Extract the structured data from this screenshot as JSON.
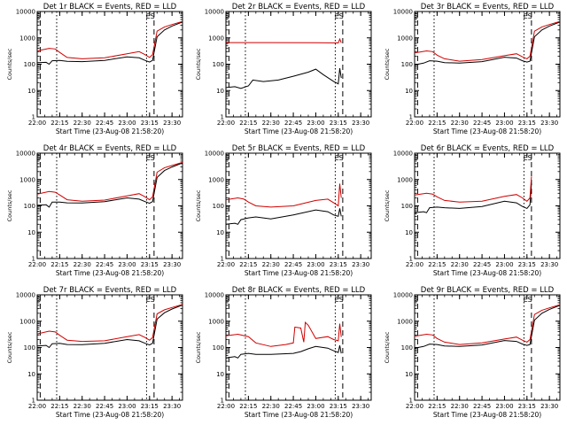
{
  "figure": {
    "layout": "3x3 grid of detector light curves"
  },
  "chart_data": [
    {
      "type": "line",
      "title": "Det 1r BLACK = Events, RED = LLD",
      "xlabel": "Start Time (23-Aug-08 21:58:20)",
      "ylabel": "Counts/sec",
      "xlim": [
        "22:00",
        "23:37"
      ],
      "ylim": [
        1,
        10000
      ],
      "yscale": "log",
      "x_ticks": [
        "22:00",
        "22:15",
        "22:30",
        "22:45",
        "23:00",
        "23:15",
        "23:30"
      ],
      "y_ticks": [
        "1",
        "10",
        "100",
        "1000",
        "10000"
      ],
      "markers": [
        "S",
        "E",
        "S"
      ],
      "series": [
        {
          "color": "#000000",
          "x": [
            "21:58",
            "22:00",
            "22:06",
            "22:08",
            "22:10",
            "22:15",
            "22:20",
            "22:30",
            "22:45",
            "23:00",
            "23:08",
            "23:12",
            "23:15",
            "23:17",
            "23:20",
            "23:25",
            "23:30",
            "23:37"
          ],
          "values": [
            110,
            115,
            118,
            100,
            135,
            140,
            128,
            125,
            140,
            190,
            175,
            140,
            120,
            140,
            1100,
            2000,
            2800,
            4000
          ]
        },
        {
          "color": "#d00000",
          "x": [
            "21:58",
            "22:00",
            "22:08",
            "22:12",
            "22:15",
            "22:20",
            "22:30",
            "22:45",
            "23:00",
            "23:08",
            "23:12",
            "23:15",
            "23:17",
            "23:20",
            "23:25",
            "23:30",
            "23:37"
          ],
          "values": [
            300,
            320,
            400,
            380,
            280,
            180,
            160,
            175,
            250,
            300,
            230,
            180,
            230,
            1800,
            2600,
            3200,
            4200
          ]
        }
      ]
    },
    {
      "type": "line",
      "title": "Det 2r BLACK = Events, RED = LLD",
      "xlabel": "Start Time (23-Aug-08 21:58:20)",
      "ylabel": "Counts/sec",
      "xlim": [
        "22:00",
        "23:37"
      ],
      "ylim": [
        1,
        10000
      ],
      "yscale": "log",
      "x_ticks": [
        "22:00",
        "22:15",
        "22:30",
        "22:45",
        "23:00",
        "23:15",
        "23:30"
      ],
      "y_ticks": [
        "1",
        "10",
        "100",
        "1000",
        "10000"
      ],
      "markers": [
        "S",
        "E",
        "S"
      ],
      "series": [
        {
          "color": "#000000",
          "x": [
            "21:58",
            "22:00",
            "22:06",
            "22:10",
            "22:15",
            "22:18",
            "22:25",
            "22:35",
            "22:45",
            "22:55",
            "23:00",
            "23:05",
            "23:12",
            "23:15",
            "23:16",
            "23:17"
          ],
          "values": [
            12,
            13,
            14,
            12,
            15,
            25,
            22,
            25,
            35,
            50,
            65,
            40,
            22,
            18,
            70,
            30
          ]
        },
        {
          "color": "#d00000",
          "x": [
            "21:58",
            "22:00",
            "22:30",
            "23:00",
            "23:15",
            "23:16",
            "23:17"
          ],
          "values": [
            650,
            660,
            660,
            650,
            640,
            900,
            650
          ]
        }
      ]
    },
    {
      "type": "line",
      "title": "Det 3r BLACK = Events, RED = LLD",
      "xlabel": "Start Time (23-Aug-08 21:58:20)",
      "ylabel": "Counts/sec",
      "xlim": [
        "22:00",
        "23:37"
      ],
      "ylim": [
        1,
        10000
      ],
      "yscale": "log",
      "x_ticks": [
        "22:00",
        "22:15",
        "22:30",
        "22:45",
        "23:00",
        "23:15",
        "23:30"
      ],
      "y_ticks": [
        "1",
        "10",
        "100",
        "1000",
        "10000"
      ],
      "markers": [
        "S",
        "E",
        "S"
      ],
      "series": [
        {
          "color": "#000000",
          "x": [
            "21:58",
            "22:00",
            "22:06",
            "22:10",
            "22:15",
            "22:20",
            "22:30",
            "22:45",
            "23:00",
            "23:08",
            "23:12",
            "23:15",
            "23:17",
            "23:20",
            "23:25",
            "23:30",
            "23:37"
          ],
          "values": [
            90,
            95,
            110,
            135,
            130,
            115,
            110,
            125,
            185,
            170,
            135,
            120,
            130,
            1100,
            2000,
            2800,
            4000
          ]
        },
        {
          "color": "#d00000",
          "x": [
            "21:58",
            "22:00",
            "22:08",
            "22:12",
            "22:15",
            "22:20",
            "22:30",
            "22:45",
            "23:00",
            "23:08",
            "23:12",
            "23:15",
            "23:17",
            "23:20",
            "23:25",
            "23:30",
            "23:37"
          ],
          "values": [
            250,
            270,
            320,
            300,
            220,
            160,
            130,
            150,
            210,
            250,
            190,
            160,
            200,
            1800,
            2600,
            3200,
            4200
          ]
        }
      ]
    },
    {
      "type": "line",
      "title": "Det 4r BLACK = Events, RED = LLD",
      "xlabel": "Start Time (23-Aug-08 21:58:20)",
      "ylabel": "Counts/sec",
      "xlim": [
        "22:00",
        "23:37"
      ],
      "ylim": [
        1,
        10000
      ],
      "yscale": "log",
      "x_ticks": [
        "22:00",
        "22:15",
        "22:30",
        "22:45",
        "23:00",
        "23:15",
        "23:30"
      ],
      "y_ticks": [
        "1",
        "10",
        "100",
        "1000",
        "10000"
      ],
      "markers": [
        "S",
        "E",
        "S"
      ],
      "series": [
        {
          "color": "#000000",
          "x": [
            "21:58",
            "22:00",
            "22:06",
            "22:08",
            "22:10",
            "22:15",
            "22:20",
            "22:30",
            "22:45",
            "23:00",
            "23:08",
            "23:12",
            "23:15",
            "23:17",
            "23:20",
            "23:25",
            "23:30",
            "23:37"
          ],
          "values": [
            100,
            105,
            110,
            90,
            140,
            140,
            130,
            128,
            145,
            200,
            180,
            145,
            125,
            145,
            1200,
            2200,
            3000,
            4300
          ]
        },
        {
          "color": "#d00000",
          "x": [
            "21:58",
            "22:00",
            "22:08",
            "22:12",
            "22:15",
            "22:20",
            "22:30",
            "22:45",
            "23:00",
            "23:08",
            "23:12",
            "23:15",
            "23:17",
            "23:20",
            "23:25",
            "23:30",
            "23:37"
          ],
          "values": [
            260,
            280,
            350,
            330,
            260,
            170,
            150,
            165,
            240,
            290,
            220,
            170,
            220,
            1900,
            2800,
            3400,
            4500
          ]
        }
      ]
    },
    {
      "type": "line",
      "title": "Det 5r BLACK = Events, RED = LLD",
      "xlabel": "Start Time (23-Aug-08 21:58:20)",
      "ylabel": "Counts/sec",
      "xlim": [
        "22:00",
        "23:37"
      ],
      "ylim": [
        1,
        10000
      ],
      "yscale": "log",
      "x_ticks": [
        "22:00",
        "22:15",
        "22:30",
        "22:45",
        "23:00",
        "23:15",
        "23:30"
      ],
      "y_ticks": [
        "1",
        "10",
        "100",
        "1000",
        "10000"
      ],
      "markers": [
        "S",
        "E",
        "S"
      ],
      "series": [
        {
          "color": "#000000",
          "x": [
            "21:58",
            "22:00",
            "22:06",
            "22:08",
            "22:10",
            "22:15",
            "22:20",
            "22:30",
            "22:45",
            "23:00",
            "23:08",
            "23:12",
            "23:15",
            "23:16",
            "23:17"
          ],
          "values": [
            18,
            20,
            22,
            20,
            30,
            35,
            38,
            32,
            45,
            70,
            60,
            45,
            40,
            80,
            40
          ]
        },
        {
          "color": "#d00000",
          "x": [
            "21:58",
            "22:00",
            "22:08",
            "22:12",
            "22:15",
            "22:20",
            "22:30",
            "22:45",
            "23:00",
            "23:08",
            "23:12",
            "23:15",
            "23:16",
            "23:17"
          ],
          "values": [
            150,
            170,
            200,
            180,
            140,
            100,
            90,
            100,
            160,
            180,
            130,
            100,
            700,
            200
          ]
        }
      ]
    },
    {
      "type": "line",
      "title": "Det 6r BLACK = Events, RED = LLD",
      "xlabel": "Start Time (23-Aug-08 21:58:20)",
      "ylabel": "Counts/sec",
      "xlim": [
        "22:00",
        "23:37"
      ],
      "ylim": [
        1,
        10000
      ],
      "yscale": "log",
      "x_ticks": [
        "22:00",
        "22:15",
        "22:30",
        "22:45",
        "23:00",
        "23:15",
        "23:30"
      ],
      "y_ticks": [
        "1",
        "10",
        "100",
        "1000",
        "10000"
      ],
      "markers": [
        "S",
        "E",
        "S"
      ],
      "series": [
        {
          "color": "#000000",
          "x": [
            "21:58",
            "22:00",
            "22:06",
            "22:08",
            "22:10",
            "22:15",
            "22:20",
            "22:30",
            "22:45",
            "23:00",
            "23:08",
            "23:12",
            "23:15",
            "23:17",
            "23:18"
          ],
          "values": [
            50,
            55,
            60,
            55,
            85,
            90,
            85,
            80,
            95,
            150,
            130,
            95,
            80,
            110,
            700
          ]
        },
        {
          "color": "#d00000",
          "x": [
            "21:58",
            "22:00",
            "22:08",
            "22:12",
            "22:15",
            "22:20",
            "22:30",
            "22:45",
            "23:00",
            "23:08",
            "23:12",
            "23:15",
            "23:17",
            "23:18"
          ],
          "values": [
            230,
            260,
            300,
            280,
            220,
            160,
            140,
            150,
            230,
            270,
            200,
            150,
            200,
            1300
          ]
        }
      ]
    },
    {
      "type": "line",
      "title": "Det 7r BLACK = Events, RED = LLD",
      "xlabel": "Start Time (23-Aug-08 21:58:20)",
      "ylabel": "Counts/sec",
      "xlim": [
        "22:00",
        "23:37"
      ],
      "ylim": [
        1,
        10000
      ],
      "yscale": "log",
      "x_ticks": [
        "22:00",
        "22:15",
        "22:30",
        "22:45",
        "23:00",
        "23:15",
        "23:30"
      ],
      "y_ticks": [
        "1",
        "10",
        "100",
        "1000",
        "10000"
      ],
      "markers": [
        "S",
        "E",
        "S"
      ],
      "series": [
        {
          "color": "#000000",
          "x": [
            "21:58",
            "22:00",
            "22:06",
            "22:08",
            "22:10",
            "22:15",
            "22:20",
            "22:30",
            "22:45",
            "23:00",
            "23:08",
            "23:12",
            "23:15",
            "23:17",
            "23:20",
            "23:25",
            "23:30",
            "23:37"
          ],
          "values": [
            110,
            115,
            120,
            100,
            140,
            145,
            130,
            128,
            145,
            200,
            180,
            145,
            125,
            145,
            1200,
            2100,
            2900,
            4100
          ]
        },
        {
          "color": "#d00000",
          "x": [
            "21:58",
            "22:00",
            "22:08",
            "22:12",
            "22:15",
            "22:20",
            "22:30",
            "22:45",
            "23:00",
            "23:08",
            "23:12",
            "23:15",
            "23:17",
            "23:20",
            "23:25",
            "23:30",
            "23:37"
          ],
          "values": [
            300,
            330,
            420,
            390,
            290,
            190,
            170,
            180,
            260,
            310,
            240,
            190,
            240,
            1900,
            2700,
            3300,
            4300
          ]
        }
      ]
    },
    {
      "type": "line",
      "title": "Det 8r BLACK = Events, RED = LLD",
      "xlabel": "Start Time (23-Aug-08 21:58:20)",
      "ylabel": "Counts/sec",
      "xlim": [
        "22:00",
        "23:37"
      ],
      "ylim": [
        1,
        10000
      ],
      "yscale": "log",
      "x_ticks": [
        "22:00",
        "22:15",
        "22:30",
        "22:45",
        "23:00",
        "23:15",
        "23:30"
      ],
      "y_ticks": [
        "1",
        "10",
        "100",
        "1000",
        "10000"
      ],
      "markers": [
        "S",
        "E",
        "S"
      ],
      "series": [
        {
          "color": "#000000",
          "x": [
            "21:58",
            "22:00",
            "22:06",
            "22:08",
            "22:10",
            "22:15",
            "22:20",
            "22:30",
            "22:45",
            "22:50",
            "22:55",
            "23:00",
            "23:08",
            "23:12",
            "23:15",
            "23:16",
            "23:17"
          ],
          "values": [
            35,
            40,
            45,
            40,
            55,
            60,
            55,
            55,
            60,
            70,
            90,
            110,
            95,
            75,
            65,
            120,
            60
          ]
        },
        {
          "color": "#d00000",
          "x": [
            "21:58",
            "22:00",
            "22:08",
            "22:15",
            "22:20",
            "22:30",
            "22:40",
            "22:45",
            "22:46",
            "22:50",
            "22:52",
            "22:53",
            "22:55",
            "23:00",
            "23:08",
            "23:12",
            "23:15",
            "23:16",
            "23:17"
          ],
          "values": [
            250,
            280,
            320,
            260,
            150,
            110,
            130,
            150,
            600,
            550,
            160,
            900,
            700,
            220,
            260,
            200,
            180,
            800,
            250
          ]
        }
      ]
    },
    {
      "type": "line",
      "title": "Det 9r BLACK = Events, RED = LLD",
      "xlabel": "Start Time (23-Aug-08 21:58:20)",
      "ylabel": "Counts/sec",
      "xlim": [
        "22:00",
        "23:37"
      ],
      "ylim": [
        1,
        10000
      ],
      "yscale": "log",
      "x_ticks": [
        "22:00",
        "22:15",
        "22:30",
        "22:45",
        "23:00",
        "23:15",
        "23:30"
      ],
      "y_ticks": [
        "1",
        "10",
        "100",
        "1000",
        "10000"
      ],
      "markers": [
        "S",
        "E",
        "S"
      ],
      "series": [
        {
          "color": "#000000",
          "x": [
            "21:58",
            "22:00",
            "22:06",
            "22:10",
            "22:15",
            "22:20",
            "22:30",
            "22:45",
            "23:00",
            "23:08",
            "23:12",
            "23:15",
            "23:17",
            "23:20",
            "23:25",
            "23:30",
            "23:37"
          ],
          "values": [
            90,
            95,
            110,
            135,
            130,
            115,
            110,
            125,
            185,
            170,
            135,
            120,
            130,
            1100,
            2000,
            2800,
            4000
          ]
        },
        {
          "color": "#d00000",
          "x": [
            "21:58",
            "22:00",
            "22:08",
            "22:12",
            "22:15",
            "22:20",
            "22:30",
            "22:45",
            "23:00",
            "23:08",
            "23:12",
            "23:15",
            "23:17",
            "23:20",
            "23:25",
            "23:30",
            "23:37"
          ],
          "values": [
            250,
            270,
            320,
            300,
            220,
            160,
            130,
            150,
            210,
            250,
            190,
            160,
            200,
            1800,
            2600,
            3200,
            4200
          ]
        }
      ]
    }
  ]
}
